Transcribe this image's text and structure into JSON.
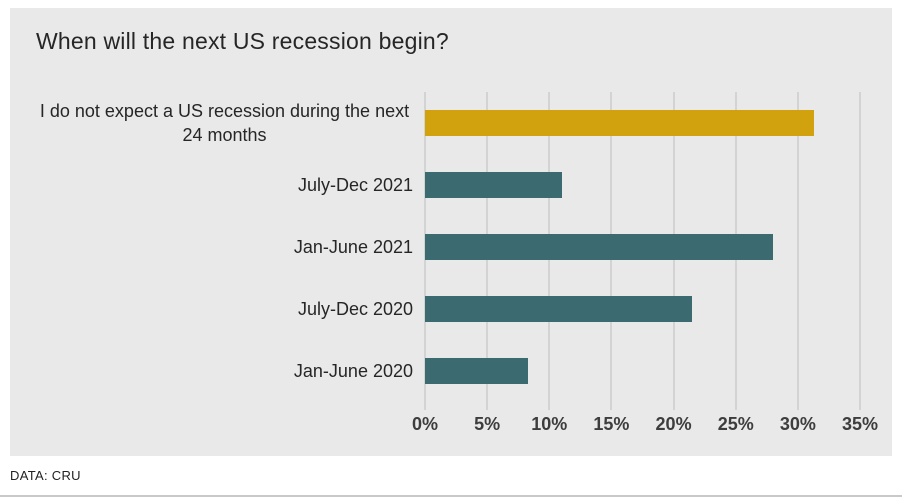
{
  "footer": {
    "source": "DATA: CRU"
  },
  "colors": {
    "panel_background": "#e9e9e9",
    "gridline": "#bdbdbd",
    "highlight_bar": "#d2a10e",
    "default_bar": "#3b6b70"
  },
  "chart_data": {
    "type": "bar",
    "orientation": "horizontal",
    "title": "When will the next US recession begin?",
    "categories": [
      "I do not expect a US recession during the next 24 months",
      "July-Dec 2021",
      "Jan-June 2021",
      "July-Dec 2020",
      "Jan-June 2020"
    ],
    "values": [
      31.3,
      11,
      28,
      21.5,
      8.3
    ],
    "unit": "%",
    "xlim": [
      0,
      35
    ],
    "x_ticks": [
      "0%",
      "5%",
      "10%",
      "15%",
      "20%",
      "25%",
      "30%",
      "35%"
    ],
    "grid": true,
    "legend": "none",
    "bar_colors": [
      "#d2a10e",
      "#3b6b70",
      "#3b6b70",
      "#3b6b70",
      "#3b6b70"
    ]
  }
}
